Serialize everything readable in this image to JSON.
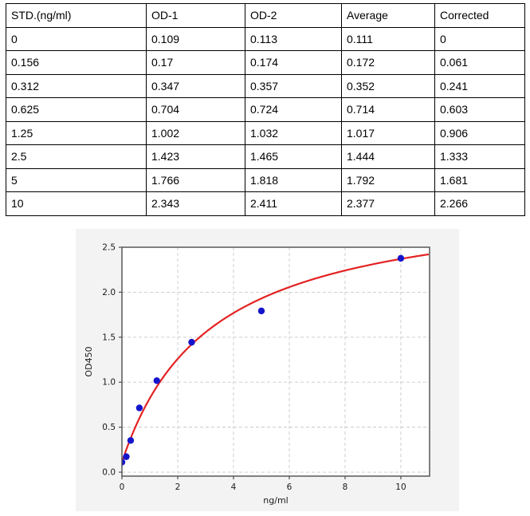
{
  "table": {
    "columns": [
      "STD.(ng/ml)",
      "OD-1",
      "OD-2",
      "Average",
      "Corrected"
    ],
    "rows": [
      [
        "0",
        "0.109",
        "0.113",
        "0.111",
        "0"
      ],
      [
        "0.156",
        "0.17",
        "0.174",
        "0.172",
        "0.061"
      ],
      [
        "0.312",
        "0.347",
        "0.357",
        "0.352",
        "0.241"
      ],
      [
        "0.625",
        "0.704",
        "0.724",
        "0.714",
        "0.603"
      ],
      [
        "1.25",
        "1.002",
        "1.032",
        "1.017",
        "0.906"
      ],
      [
        "2.5",
        "1.423",
        "1.465",
        "1.444",
        "1.333"
      ],
      [
        "5",
        "1.766",
        "1.818",
        "1.792",
        "1.681"
      ],
      [
        "10",
        "2.343",
        "2.411",
        "2.377",
        "2.266"
      ]
    ]
  },
  "chart_data": {
    "type": "scatter",
    "x": [
      0,
      0.156,
      0.312,
      0.625,
      1.25,
      2.5,
      5,
      10
    ],
    "y": [
      0.111,
      0.172,
      0.352,
      0.714,
      1.017,
      1.444,
      1.792,
      2.377
    ],
    "title": "",
    "xlabel": "ng/ml",
    "ylabel": "OD450",
    "xlim": [
      0,
      11.03
    ],
    "ylim": [
      -0.044,
      2.5
    ],
    "xticks": [
      0,
      2,
      4,
      6,
      8,
      10
    ],
    "xtick_labels": [
      "0",
      "2",
      "4",
      "6",
      "8",
      "10"
    ],
    "yticks": [
      0,
      0.5,
      1.0,
      1.5,
      2.0,
      2.5
    ],
    "ytick_labels": [
      "0.0",
      "0.5",
      "1.0",
      "1.5",
      "2.0",
      "2.5"
    ],
    "grid": "dashed",
    "legend": "none",
    "fit_curve": {
      "type": "michaelis_menten",
      "vmax": 2.98,
      "km": 3.19,
      "offset": 0.111
    },
    "colors": {
      "point": "#1414cc",
      "curve": "#e32222",
      "grid": "#c9c9c9",
      "spine": "#4d4d4d",
      "figure_bg": "#f3f3f3",
      "plot_bg": "#ffffff",
      "tick_text": "#1a1a1a"
    }
  }
}
